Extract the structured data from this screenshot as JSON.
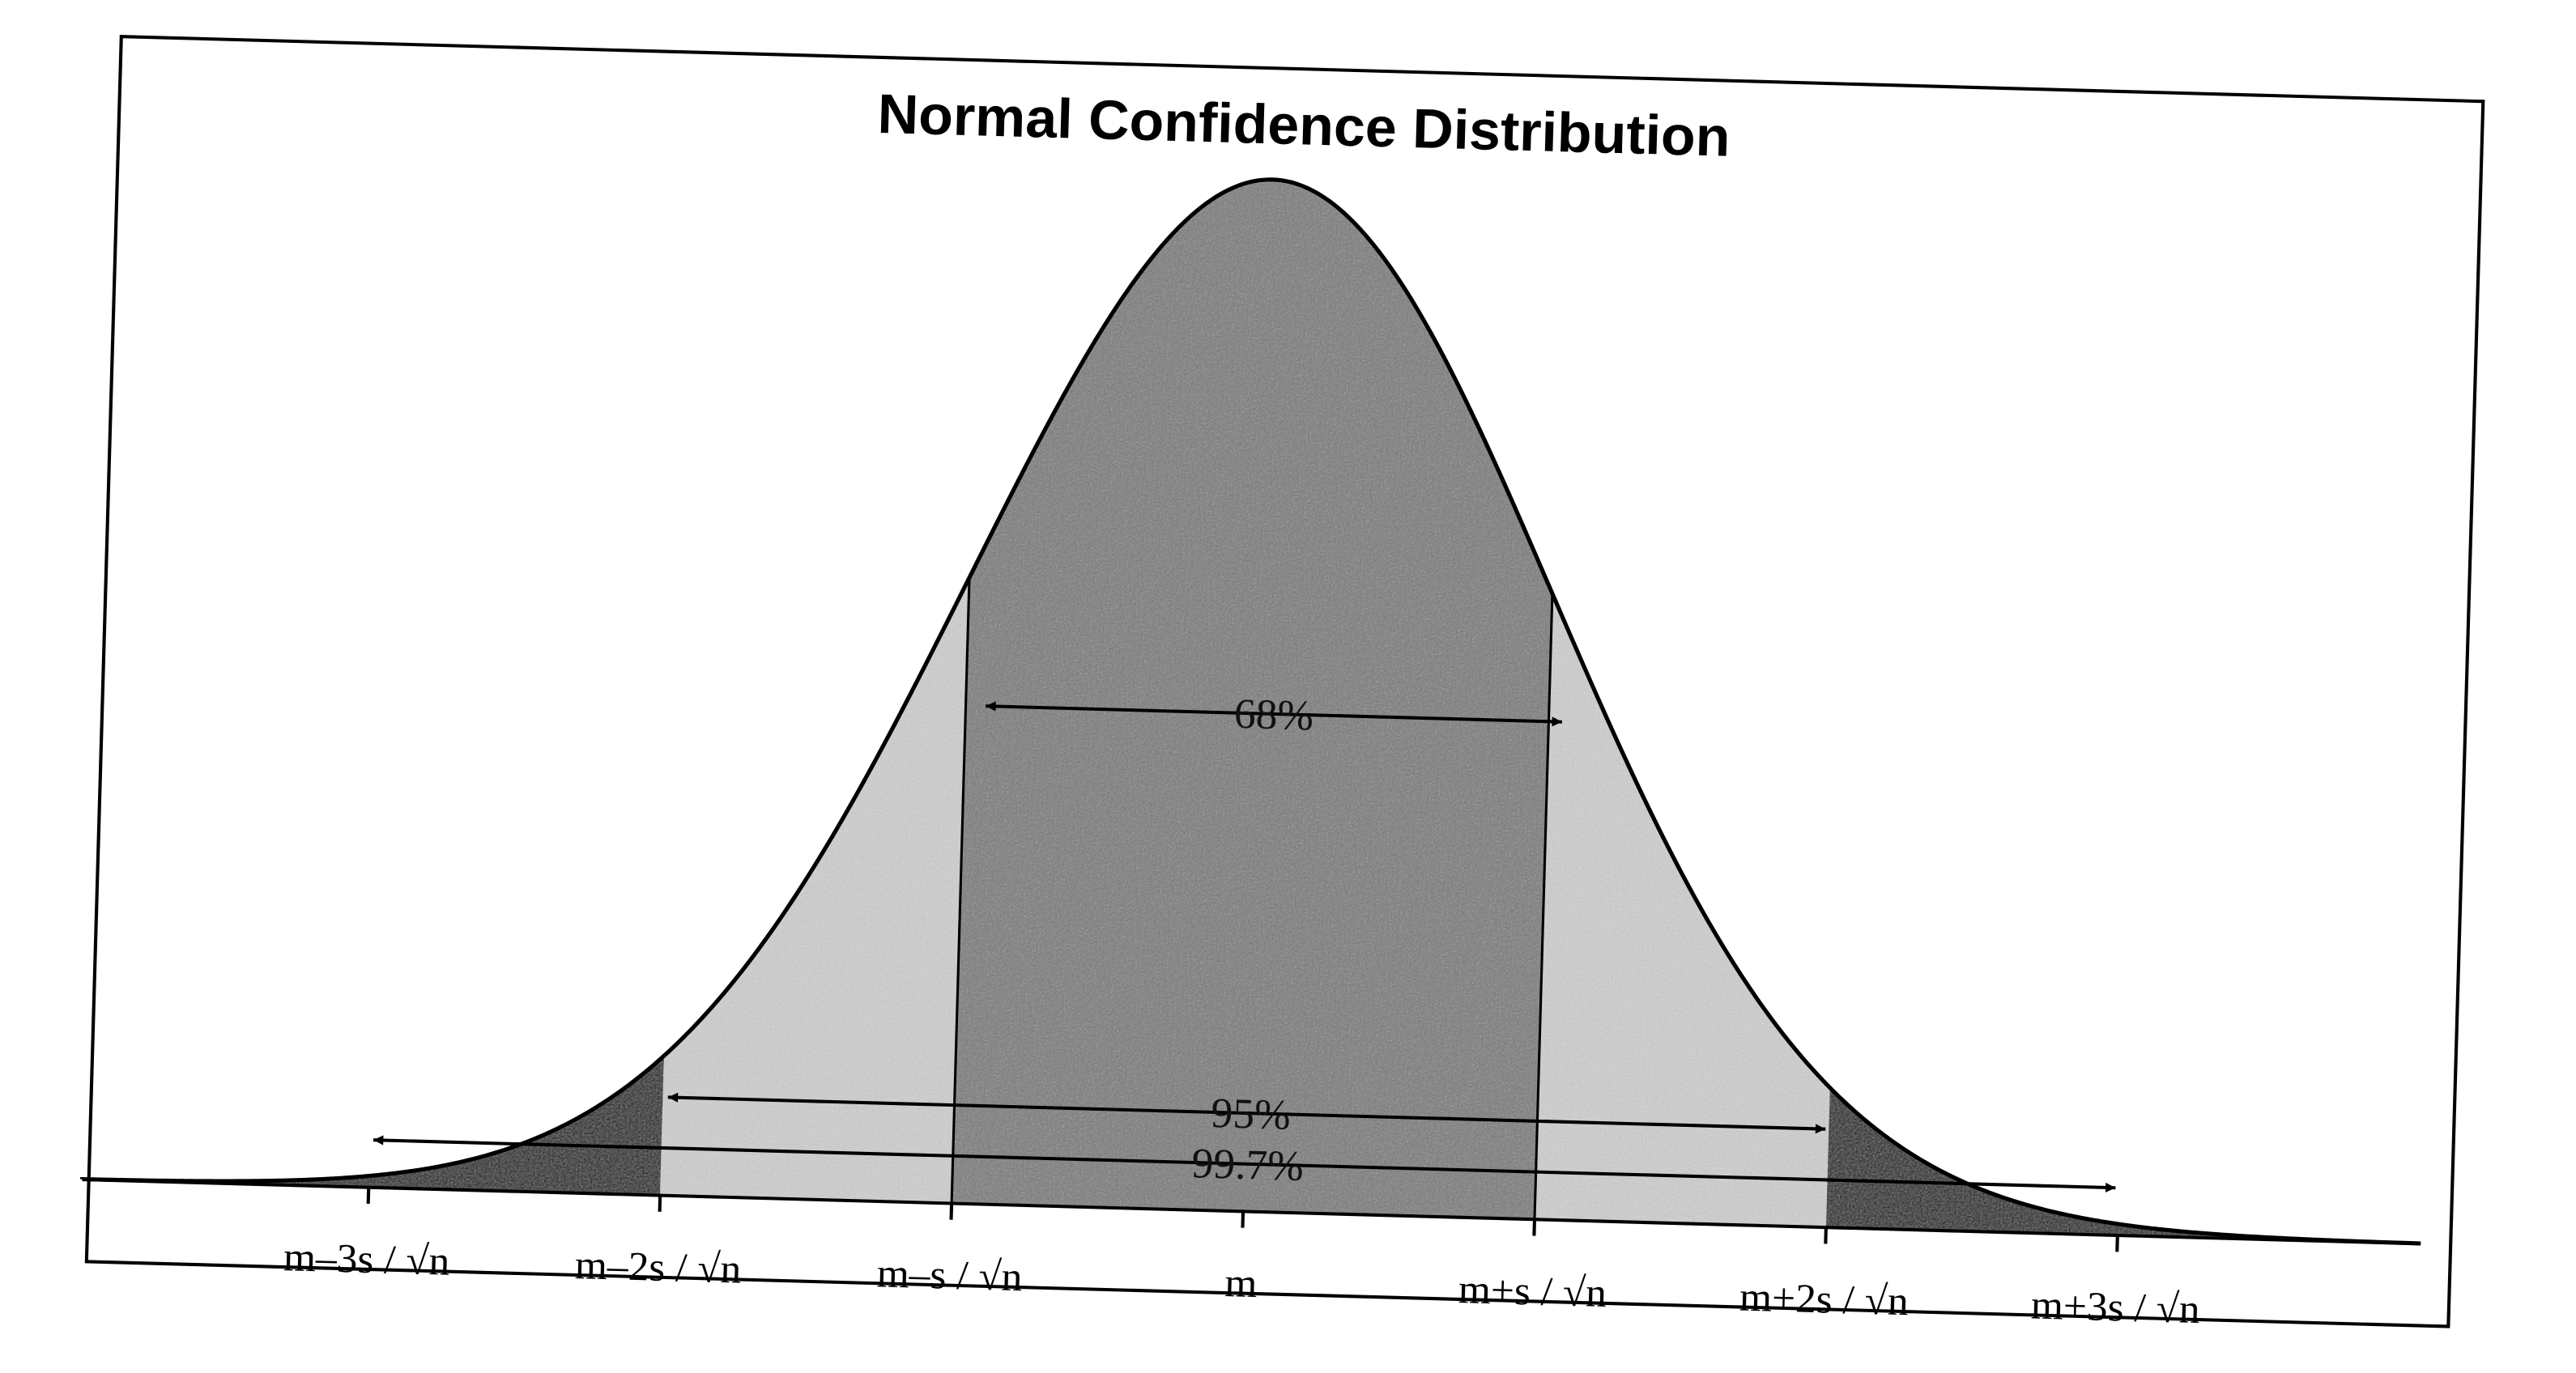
{
  "title": "Normal Confidence Distribution",
  "intervals": {
    "one_sigma": "68%",
    "two_sigma": "95%",
    "three_sigma": "99.7%"
  },
  "x_labels": [
    "m–3s / √n",
    "m–2s / √n",
    "m–s / √n",
    "m",
    "m+s / √n",
    "m+2s / √n",
    "m+3s / √n"
  ]
}
